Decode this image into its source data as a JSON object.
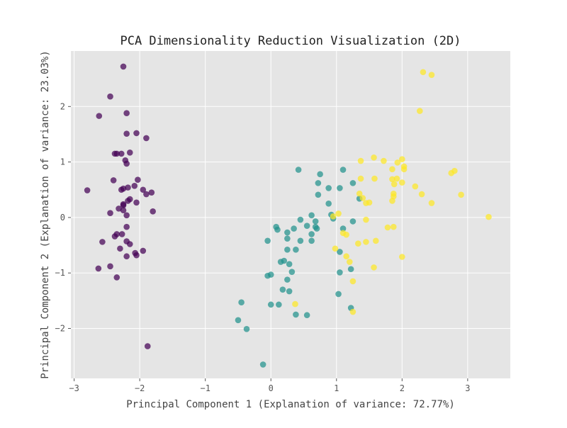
{
  "chart_data": {
    "type": "scatter",
    "title": "PCA Dimensionality Reduction Visualization (2D)",
    "xlabel": "Principal Component 1 (Explanation of variance: 72.77%)",
    "ylabel": "Principal Component 2 (Explanation of variance: 23.03%)",
    "xlim": [
      -3.05,
      3.65
    ],
    "ylim": [
      -2.9,
      3.0
    ],
    "x_ticks": [
      -3,
      -2,
      -1,
      0,
      1,
      2,
      3
    ],
    "y_ticks": [
      -2,
      -1,
      0,
      1,
      2
    ],
    "grid": true,
    "legend": "none",
    "background_color": "#e5e5e5",
    "grid_color": "#ffffff",
    "series": [
      {
        "color": "#440154",
        "points": [
          [
            -2.25,
            2.72
          ],
          [
            -2.45,
            2.18
          ],
          [
            -2.62,
            1.83
          ],
          [
            -2.2,
            1.88
          ],
          [
            -2.2,
            1.51
          ],
          [
            -2.05,
            1.52
          ],
          [
            -1.9,
            1.43
          ],
          [
            -2.38,
            1.15
          ],
          [
            -2.35,
            1.15
          ],
          [
            -2.28,
            1.15
          ],
          [
            -2.15,
            1.17
          ],
          [
            -2.22,
            1.03
          ],
          [
            -2.2,
            0.97
          ],
          [
            -2.4,
            0.67
          ],
          [
            -2.03,
            0.68
          ],
          [
            -2.8,
            0.49
          ],
          [
            -2.28,
            0.5
          ],
          [
            -2.25,
            0.52
          ],
          [
            -2.18,
            0.54
          ],
          [
            -2.08,
            0.57
          ],
          [
            -1.95,
            0.5
          ],
          [
            -1.9,
            0.42
          ],
          [
            -1.82,
            0.45
          ],
          [
            -2.15,
            0.33
          ],
          [
            -2.18,
            0.3
          ],
          [
            -2.25,
            0.24
          ],
          [
            -2.25,
            0.22
          ],
          [
            -2.05,
            0.27
          ],
          [
            -2.32,
            0.16
          ],
          [
            -2.25,
            0.13
          ],
          [
            -2.45,
            0.08
          ],
          [
            -1.8,
            0.11
          ],
          [
            -2.2,
            0.04
          ],
          [
            -2.2,
            -0.17
          ],
          [
            -2.35,
            -0.3
          ],
          [
            -2.38,
            -0.34
          ],
          [
            -2.27,
            -0.3
          ],
          [
            -2.2,
            -0.43
          ],
          [
            -2.15,
            -0.48
          ],
          [
            -2.57,
            -0.44
          ],
          [
            -2.3,
            -0.56
          ],
          [
            -2.07,
            -0.64
          ],
          [
            -2.05,
            -0.68
          ],
          [
            -1.95,
            -0.6
          ],
          [
            -2.2,
            -0.7
          ],
          [
            -2.63,
            -0.92
          ],
          [
            -2.45,
            -0.88
          ],
          [
            -2.35,
            -1.08
          ],
          [
            -1.88,
            -2.32
          ]
        ]
      },
      {
        "color": "#21918c",
        "points": [
          [
            0.42,
            0.86
          ],
          [
            0.75,
            0.78
          ],
          [
            1.1,
            0.86
          ],
          [
            0.72,
            0.62
          ],
          [
            1.25,
            0.62
          ],
          [
            0.88,
            0.53
          ],
          [
            1.05,
            0.53
          ],
          [
            0.72,
            0.41
          ],
          [
            1.35,
            0.34
          ],
          [
            0.88,
            0.25
          ],
          [
            0.92,
            0.05
          ],
          [
            0.62,
            0.04
          ],
          [
            0.45,
            -0.04
          ],
          [
            0.68,
            -0.07
          ],
          [
            0.95,
            -0.02
          ],
          [
            1.25,
            -0.07
          ],
          [
            0.55,
            -0.15
          ],
          [
            0.35,
            -0.2
          ],
          [
            0.08,
            -0.17
          ],
          [
            0.1,
            -0.22
          ],
          [
            0.7,
            -0.2
          ],
          [
            0.68,
            -0.17
          ],
          [
            1.1,
            -0.2
          ],
          [
            0.25,
            -0.27
          ],
          [
            0.62,
            -0.3
          ],
          [
            0.25,
            -0.38
          ],
          [
            0.45,
            -0.42
          ],
          [
            0.62,
            -0.42
          ],
          [
            -0.05,
            -0.42
          ],
          [
            0.25,
            -0.58
          ],
          [
            0.38,
            -0.58
          ],
          [
            1.05,
            -0.62
          ],
          [
            0.2,
            -0.78
          ],
          [
            0.28,
            -0.84
          ],
          [
            0.15,
            -0.8
          ],
          [
            0.32,
            -0.98
          ],
          [
            0.0,
            -1.03
          ],
          [
            -0.05,
            -1.05
          ],
          [
            1.05,
            -0.99
          ],
          [
            1.22,
            -0.93
          ],
          [
            0.25,
            -1.12
          ],
          [
            0.18,
            -1.3
          ],
          [
            0.28,
            -1.33
          ],
          [
            1.03,
            -1.38
          ],
          [
            -0.45,
            -1.53
          ],
          [
            0.0,
            -1.57
          ],
          [
            0.12,
            -1.57
          ],
          [
            1.22,
            -1.63
          ],
          [
            0.38,
            -1.75
          ],
          [
            0.55,
            -1.76
          ],
          [
            -0.5,
            -1.85
          ],
          [
            -0.37,
            -2.01
          ],
          [
            -0.12,
            -2.65
          ]
        ]
      },
      {
        "color": "#fde725",
        "points": [
          [
            2.32,
            2.62
          ],
          [
            2.45,
            2.57
          ],
          [
            2.27,
            1.92
          ],
          [
            1.57,
            1.08
          ],
          [
            1.72,
            1.02
          ],
          [
            2.0,
            1.05
          ],
          [
            1.93,
            0.99
          ],
          [
            1.37,
            1.02
          ],
          [
            2.03,
            0.92
          ],
          [
            2.03,
            0.87
          ],
          [
            1.85,
            0.87
          ],
          [
            2.8,
            0.84
          ],
          [
            2.75,
            0.8
          ],
          [
            1.37,
            0.7
          ],
          [
            1.58,
            0.7
          ],
          [
            1.85,
            0.69
          ],
          [
            1.92,
            0.7
          ],
          [
            1.88,
            0.6
          ],
          [
            2.0,
            0.63
          ],
          [
            2.2,
            0.56
          ],
          [
            2.3,
            0.42
          ],
          [
            2.9,
            0.41
          ],
          [
            1.87,
            0.43
          ],
          [
            1.87,
            0.38
          ],
          [
            1.35,
            0.43
          ],
          [
            1.4,
            0.35
          ],
          [
            1.85,
            0.3
          ],
          [
            1.5,
            0.27
          ],
          [
            1.45,
            0.26
          ],
          [
            2.45,
            0.26
          ],
          [
            1.03,
            0.07
          ],
          [
            0.95,
            0.02
          ],
          [
            3.32,
            0.01
          ],
          [
            1.45,
            -0.04
          ],
          [
            1.87,
            -0.17
          ],
          [
            1.78,
            -0.18
          ],
          [
            1.1,
            -0.28
          ],
          [
            1.15,
            -0.31
          ],
          [
            1.6,
            -0.42
          ],
          [
            1.45,
            -0.44
          ],
          [
            1.33,
            -0.47
          ],
          [
            0.98,
            -0.56
          ],
          [
            2.0,
            -0.71
          ],
          [
            1.15,
            -0.7
          ],
          [
            1.2,
            -0.8
          ],
          [
            1.57,
            -0.9
          ],
          [
            1.25,
            -1.15
          ],
          [
            0.37,
            -1.56
          ],
          [
            1.25,
            -1.7
          ]
        ]
      }
    ]
  }
}
